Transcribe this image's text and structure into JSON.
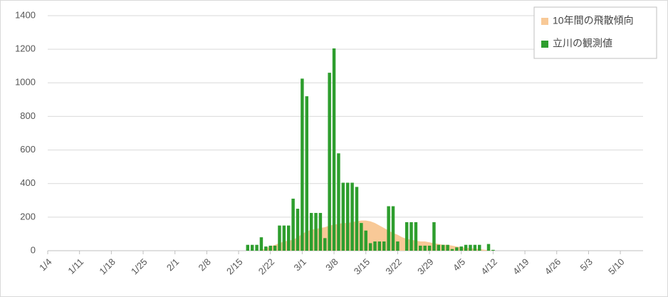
{
  "chart_data": {
    "type": "bar",
    "categories": [
      "1/4",
      null,
      null,
      null,
      null,
      null,
      null,
      "1/11",
      null,
      null,
      null,
      null,
      null,
      null,
      "1/18",
      null,
      null,
      null,
      null,
      null,
      null,
      "1/25",
      null,
      null,
      null,
      null,
      null,
      null,
      "2/1",
      null,
      null,
      null,
      null,
      null,
      null,
      "2/8",
      null,
      null,
      null,
      null,
      null,
      null,
      "2/15",
      null,
      null,
      null,
      null,
      null,
      null,
      "2/22",
      null,
      null,
      null,
      null,
      null,
      null,
      "3/1",
      null,
      null,
      null,
      null,
      null,
      null,
      "3/8",
      null,
      null,
      null,
      null,
      null,
      null,
      "3/15",
      null,
      null,
      null,
      null,
      null,
      null,
      "3/22",
      null,
      null,
      null,
      null,
      null,
      null,
      "3/29",
      null,
      null,
      null,
      null,
      null,
      null,
      "4/5",
      null,
      null,
      null,
      null,
      null,
      null,
      "4/12",
      null,
      null,
      null,
      null,
      null,
      null,
      "4/19",
      null,
      null,
      null,
      null,
      null,
      null,
      "4/26",
      null,
      null,
      null,
      null,
      null,
      null,
      "5/3",
      null,
      null,
      null,
      null,
      null,
      null,
      "5/10",
      null,
      null,
      null,
      null
    ],
    "series": [
      {
        "name": "10年間の飛散傾向",
        "type": "area",
        "color": "#f8c997",
        "values": [
          null,
          null,
          null,
          null,
          null,
          null,
          null,
          null,
          null,
          null,
          null,
          null,
          null,
          null,
          null,
          null,
          null,
          null,
          null,
          null,
          null,
          null,
          null,
          null,
          null,
          null,
          null,
          null,
          null,
          null,
          null,
          null,
          null,
          null,
          null,
          null,
          null,
          null,
          null,
          null,
          null,
          null,
          null,
          null,
          null,
          null,
          null,
          5,
          15,
          25,
          35,
          45,
          55,
          60,
          65,
          80,
          100,
          115,
          125,
          130,
          135,
          140,
          150,
          155,
          160,
          165,
          165,
          170,
          175,
          180,
          180,
          175,
          165,
          150,
          135,
          120,
          105,
          95,
          80,
          70,
          65,
          60,
          55,
          55,
          50,
          45,
          40,
          35,
          35,
          30,
          25,
          20,
          18,
          15,
          12,
          10,
          6,
          3,
          0,
          null,
          null,
          null,
          null,
          null,
          null,
          null,
          null,
          null,
          null,
          null,
          null,
          null,
          null,
          null,
          null,
          null,
          null,
          null,
          null,
          null,
          null,
          null,
          null,
          null,
          null,
          null,
          null,
          null,
          null,
          null,
          null
        ]
      },
      {
        "name": "立川の観測値",
        "type": "bar",
        "color": "#2e9e2e",
        "values": [
          null,
          null,
          null,
          null,
          null,
          null,
          null,
          null,
          null,
          null,
          null,
          null,
          null,
          null,
          null,
          null,
          null,
          null,
          null,
          null,
          null,
          null,
          null,
          null,
          null,
          null,
          null,
          null,
          null,
          null,
          null,
          null,
          null,
          null,
          null,
          null,
          null,
          null,
          null,
          null,
          null,
          null,
          null,
          null,
          35,
          35,
          35,
          80,
          25,
          30,
          30,
          150,
          150,
          150,
          310,
          250,
          1025,
          920,
          225,
          225,
          225,
          75,
          1060,
          1205,
          580,
          405,
          405,
          405,
          380,
          165,
          120,
          45,
          55,
          55,
          55,
          265,
          265,
          55,
          0,
          170,
          170,
          170,
          30,
          30,
          30,
          170,
          35,
          35,
          35,
          10,
          20,
          25,
          35,
          35,
          35,
          35,
          0,
          40,
          5,
          null,
          null,
          null,
          null,
          null,
          null,
          null,
          null,
          null,
          null,
          null,
          null,
          null,
          null,
          null,
          null,
          null,
          null,
          null,
          null,
          null,
          null,
          null,
          null,
          null,
          null,
          null,
          null,
          null,
          null,
          null,
          null
        ]
      }
    ],
    "ylim": [
      0,
      1400
    ],
    "yticks": [
      0,
      200,
      400,
      600,
      800,
      1000,
      1200,
      1400
    ],
    "grid": true,
    "legend": "top-right"
  }
}
